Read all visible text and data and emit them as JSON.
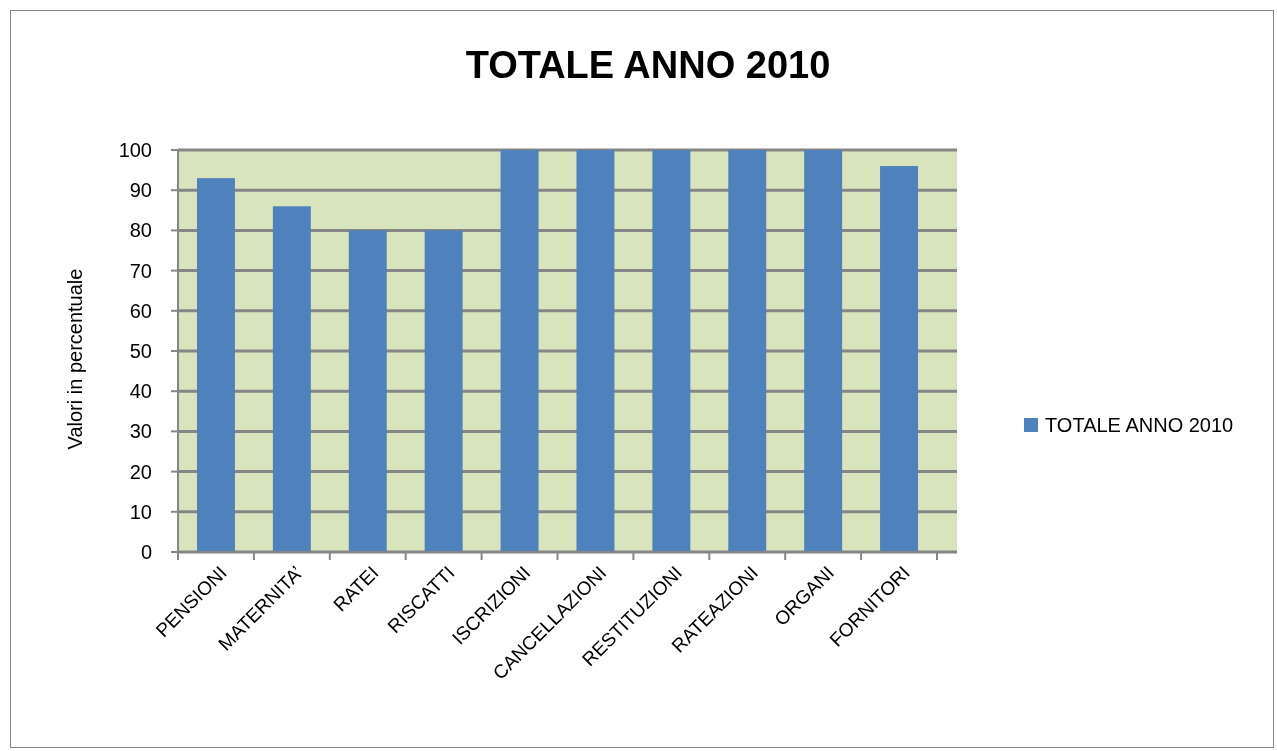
{
  "chart_data": {
    "type": "bar",
    "title": "TOTALE ANNO 2010",
    "ylabel": "Valori in percentuale",
    "categories": [
      "PENSIONI",
      "MATERNITA’",
      "RATEI",
      "RISCATTI",
      "ISCRIZIONI",
      "CANCELLAZIONI",
      "RESTITUZIONI",
      "RATEAZIONI",
      "ORGANI",
      "FORNITORI"
    ],
    "series": [
      {
        "name": "TOTALE ANNO 2010",
        "color": "#4f81bd",
        "values": [
          93,
          86,
          80,
          80,
          100,
          100,
          100,
          100,
          100,
          96
        ]
      }
    ],
    "ylim": [
      0,
      100
    ],
    "yticks": [
      0,
      10,
      20,
      30,
      40,
      50,
      60,
      70,
      80,
      90,
      100
    ],
    "grid": "y",
    "legend": "right"
  }
}
